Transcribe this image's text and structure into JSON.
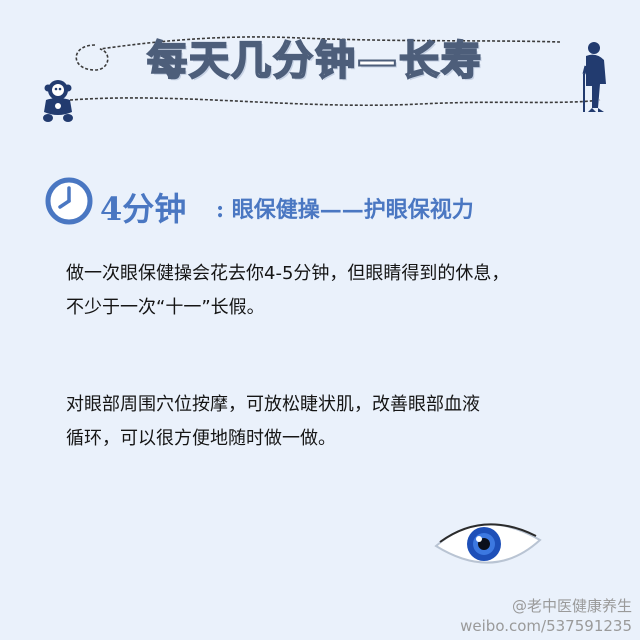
{
  "banner": {
    "title": "每天几分钟—长寿",
    "left_figure": "baby-icon",
    "right_figure": "elderly-man-with-cane-icon"
  },
  "section": {
    "icon": "clock-icon",
    "minutes": "4分钟",
    "title": ": 眼保健操——护眼保视力"
  },
  "paragraphs": {
    "p1_line1": "做一次眼保健操会花去你4-5分钟，但眼睛得到的休息，",
    "p1_line2": "不少于一次“十一”长假。",
    "p2_line1": "对眼部周围穴位按摩，可放松睫状肌，改善眼部血液",
    "p2_line2": "循环，可以很方便地随时做一做。"
  },
  "illustration": {
    "icon": "blue-eye-icon"
  },
  "watermark": {
    "line1": "@老中医健康养生",
    "line2": "weibo.com/537591235"
  },
  "colors": {
    "background": "#eaf1fb",
    "accent": "#4a77c2",
    "title_outline": "#4d5e7a",
    "text": "#151515"
  }
}
